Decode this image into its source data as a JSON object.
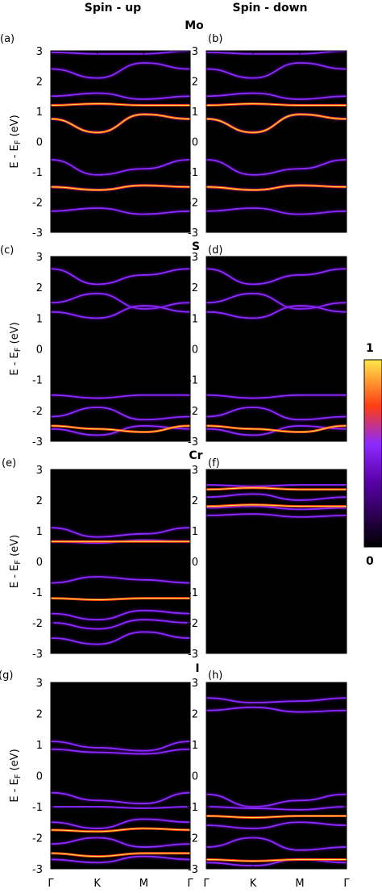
{
  "headers": {
    "spin_up": "Spin - up",
    "spin_down": "Spin - down"
  },
  "atoms": [
    "Mo",
    "S",
    "Cr",
    "I"
  ],
  "panel_letters": [
    "(a)",
    "(b)",
    "(c)",
    "(d)",
    "(e)",
    "(f)",
    "(g)",
    "(h)"
  ],
  "ylabel_main": "E - E",
  "ylabel_sub": "F",
  "ylabel_unit": " (eV)",
  "colorbar": {
    "max_label": "1",
    "min_label": "0"
  },
  "colors": {
    "background": "#000000",
    "low": "#5a00a8",
    "mid": "#8b2bff",
    "high": "#ff3c14",
    "max": "#ffe84a"
  },
  "chart_data": {
    "type": "heatmap",
    "description_kind": "orbital-projected spectral function (band structure)",
    "x_ticks": [
      "Γ",
      "K",
      "M",
      "Γ"
    ],
    "y_ticks": [
      3,
      2,
      1,
      0,
      -1,
      -2,
      -3
    ],
    "ylim": [
      -3,
      3
    ],
    "colorbar_range": [
      0,
      1
    ],
    "panels": [
      {
        "letter": "(a)",
        "atom": "Mo",
        "spin": "up",
        "bands": [
          [
            2.95,
            2.9,
            2.9,
            3.0
          ],
          [
            2.4,
            2.1,
            2.6,
            2.4
          ],
          [
            1.5,
            1.6,
            1.4,
            1.5
          ],
          [
            1.2,
            1.25,
            1.2,
            1.2
          ],
          [
            0.75,
            0.3,
            0.9,
            0.75
          ],
          [
            -0.6,
            -1.1,
            -0.9,
            -0.6
          ],
          [
            -1.5,
            -1.6,
            -1.45,
            -1.5
          ],
          [
            -2.3,
            -2.2,
            -2.4,
            -2.3
          ]
        ],
        "bright": [
          [
            1.2,
            1.25,
            1.2,
            1.2
          ],
          [
            0.75,
            0.3,
            0.9,
            0.75
          ],
          [
            -1.5,
            -1.6,
            -1.45,
            -1.5
          ]
        ]
      },
      {
        "letter": "(b)",
        "atom": "Mo",
        "spin": "down",
        "bands": [
          [
            2.95,
            2.9,
            2.9,
            3.0
          ],
          [
            2.4,
            2.1,
            2.6,
            2.4
          ],
          [
            1.5,
            1.6,
            1.4,
            1.5
          ],
          [
            1.2,
            1.25,
            1.2,
            1.2
          ],
          [
            0.75,
            0.3,
            0.9,
            0.75
          ],
          [
            -0.6,
            -1.1,
            -0.9,
            -0.6
          ],
          [
            -1.5,
            -1.6,
            -1.45,
            -1.5
          ],
          [
            -2.3,
            -2.2,
            -2.4,
            -2.3
          ]
        ],
        "bright": [
          [
            1.2,
            1.25,
            1.2,
            1.2
          ],
          [
            0.75,
            0.3,
            0.9,
            0.75
          ],
          [
            -1.5,
            -1.6,
            -1.45,
            -1.5
          ]
        ]
      },
      {
        "letter": "(c)",
        "atom": "S",
        "spin": "up",
        "bands": [
          [
            2.6,
            2.1,
            2.4,
            2.6
          ],
          [
            1.5,
            1.8,
            1.3,
            1.5
          ],
          [
            1.2,
            1.0,
            1.4,
            1.2
          ],
          [
            -1.5,
            -1.6,
            -1.5,
            -1.5
          ],
          [
            -2.2,
            -1.9,
            -2.3,
            -2.2
          ],
          [
            -2.6,
            -2.8,
            -2.5,
            -2.6
          ]
        ],
        "bright": [
          [
            -2.5,
            -2.6,
            -2.7,
            -2.5
          ]
        ]
      },
      {
        "letter": "(d)",
        "atom": "S",
        "spin": "down",
        "bands": [
          [
            2.6,
            2.1,
            2.4,
            2.6
          ],
          [
            1.5,
            1.8,
            1.3,
            1.5
          ],
          [
            1.2,
            1.0,
            1.4,
            1.2
          ],
          [
            -1.5,
            -1.6,
            -1.5,
            -1.5
          ],
          [
            -2.2,
            -1.9,
            -2.3,
            -2.2
          ],
          [
            -2.6,
            -2.8,
            -2.5,
            -2.6
          ]
        ],
        "bright": [
          [
            -2.5,
            -2.6,
            -2.7,
            -2.5
          ]
        ]
      },
      {
        "letter": "(e)",
        "atom": "Cr",
        "spin": "up",
        "bands": [
          [
            1.1,
            0.8,
            0.9,
            1.1
          ],
          [
            0.65,
            0.6,
            0.7,
            0.65
          ],
          [
            -0.7,
            -0.5,
            -0.6,
            -0.7
          ],
          [
            -1.7,
            -1.9,
            -1.6,
            -1.7
          ],
          [
            -2.0,
            -2.2,
            -1.9,
            -2.0
          ],
          [
            -2.5,
            -2.7,
            -2.3,
            -2.5
          ]
        ],
        "bright": [
          [
            0.65,
            0.65,
            0.65,
            0.65
          ],
          [
            -1.2,
            -1.25,
            -1.2,
            -1.2
          ]
        ]
      },
      {
        "letter": "(f)",
        "atom": "Cr",
        "spin": "down",
        "bands": [
          [
            2.5,
            2.45,
            2.5,
            2.5
          ],
          [
            2.1,
            2.2,
            2.0,
            2.1
          ],
          [
            1.75,
            1.8,
            1.7,
            1.75
          ],
          [
            1.5,
            1.55,
            1.45,
            1.5
          ]
        ],
        "bright": [
          [
            2.35,
            2.4,
            2.35,
            2.35
          ],
          [
            1.8,
            1.85,
            1.8,
            1.8
          ]
        ]
      },
      {
        "letter": "(g)",
        "atom": "I",
        "spin": "up",
        "bands": [
          [
            1.1,
            0.9,
            0.8,
            1.1
          ],
          [
            0.85,
            0.75,
            0.7,
            0.85
          ],
          [
            -0.55,
            -0.8,
            -0.9,
            -0.55
          ],
          [
            -1.0,
            -1.0,
            -1.05,
            -1.0
          ],
          [
            -1.5,
            -1.7,
            -1.4,
            -1.5
          ],
          [
            -2.2,
            -2.0,
            -2.3,
            -2.2
          ],
          [
            -2.7,
            -2.8,
            -2.6,
            -2.7
          ]
        ],
        "bright": [
          [
            -1.75,
            -1.8,
            -1.7,
            -1.75
          ],
          [
            -2.5,
            -2.6,
            -2.5,
            -2.5
          ]
        ]
      },
      {
        "letter": "(h)",
        "atom": "I",
        "spin": "down",
        "bands": [
          [
            2.5,
            2.35,
            2.4,
            2.5
          ],
          [
            2.1,
            2.2,
            2.05,
            2.1
          ],
          [
            -0.6,
            -1.0,
            -0.8,
            -0.6
          ],
          [
            -1.0,
            -1.05,
            -1.1,
            -1.0
          ],
          [
            -1.6,
            -1.7,
            -1.5,
            -1.6
          ],
          [
            -2.3,
            -2.0,
            -2.4,
            -2.3
          ],
          [
            -2.8,
            -2.9,
            -2.7,
            -2.8
          ]
        ],
        "bright": [
          [
            -1.3,
            -1.35,
            -1.3,
            -1.3
          ],
          [
            -2.7,
            -2.75,
            -2.7,
            -2.7
          ]
        ]
      }
    ]
  }
}
